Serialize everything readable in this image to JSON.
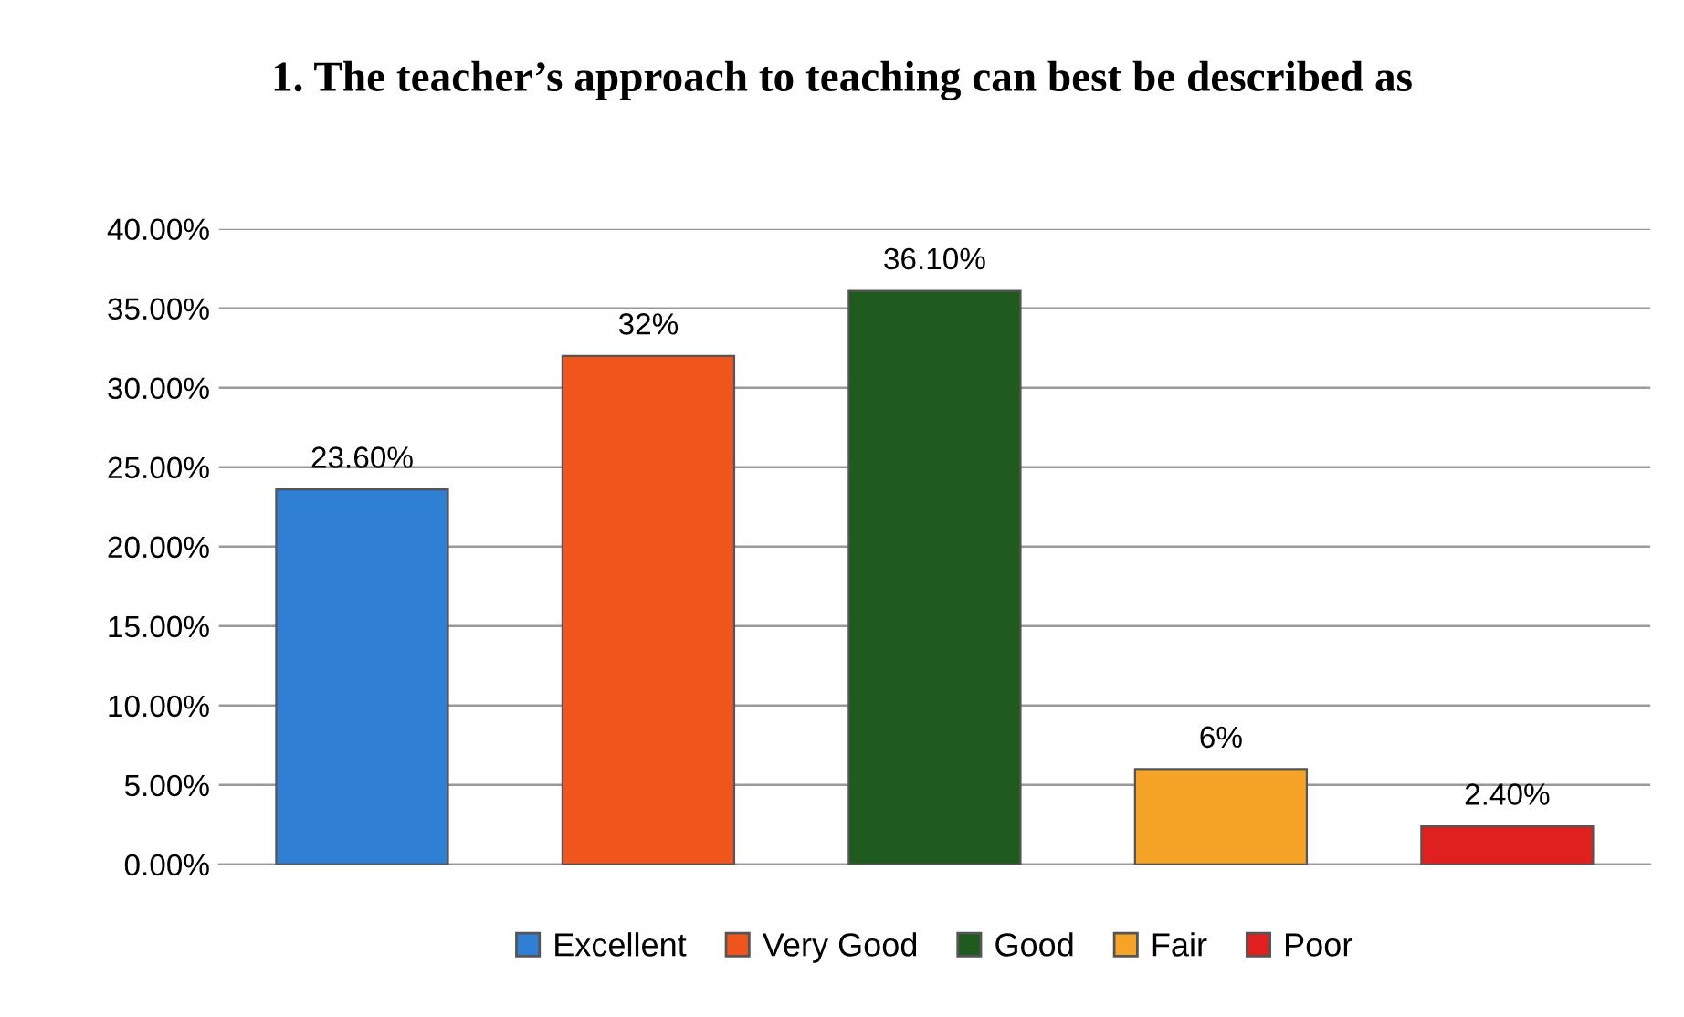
{
  "chart_data": {
    "type": "bar",
    "title": "1. The teacher’s approach to teaching can best be described as",
    "categories": [
      null,
      null,
      null,
      null,
      null
    ],
    "series": [
      {
        "name": "Excellent",
        "color": "#2f7fd4",
        "values": [
          23.6,
          null,
          null,
          null,
          null
        ],
        "value_labels": [
          "23.60%",
          null,
          null,
          null,
          null
        ]
      },
      {
        "name": "Very Good",
        "color": "#f0561c",
        "values": [
          null,
          32,
          null,
          null,
          null
        ],
        "value_labels": [
          null,
          "32%",
          null,
          null,
          null
        ]
      },
      {
        "name": "Good",
        "color": "#1f5a1f",
        "values": [
          null,
          null,
          36.1,
          null,
          null
        ],
        "value_labels": [
          null,
          null,
          "36.10%",
          null,
          null
        ]
      },
      {
        "name": "Fair",
        "color": "#f5a428",
        "values": [
          null,
          null,
          null,
          6,
          null
        ],
        "value_labels": [
          null,
          null,
          null,
          "6%",
          null
        ]
      },
      {
        "name": "Poor",
        "color": "#e0201e",
        "values": [
          null,
          null,
          null,
          null,
          2.4
        ],
        "value_labels": [
          null,
          null,
          null,
          null,
          "2.40%"
        ]
      }
    ],
    "ylim": [
      0,
      40
    ],
    "yticks": [
      {
        "value": 0,
        "label": "0.00%"
      },
      {
        "value": 5,
        "label": "5.00%"
      },
      {
        "value": 10,
        "label": "10.00%"
      },
      {
        "value": 15,
        "label": "15.00%"
      },
      {
        "value": 20,
        "label": "20.00%"
      },
      {
        "value": 25,
        "label": "25.00%"
      },
      {
        "value": 30,
        "label": "30.00%"
      },
      {
        "value": 35,
        "label": "35.00%"
      },
      {
        "value": 40,
        "label": "40.00%"
      }
    ],
    "grid": "y",
    "legend": "bottom",
    "tick_labels": "y"
  }
}
